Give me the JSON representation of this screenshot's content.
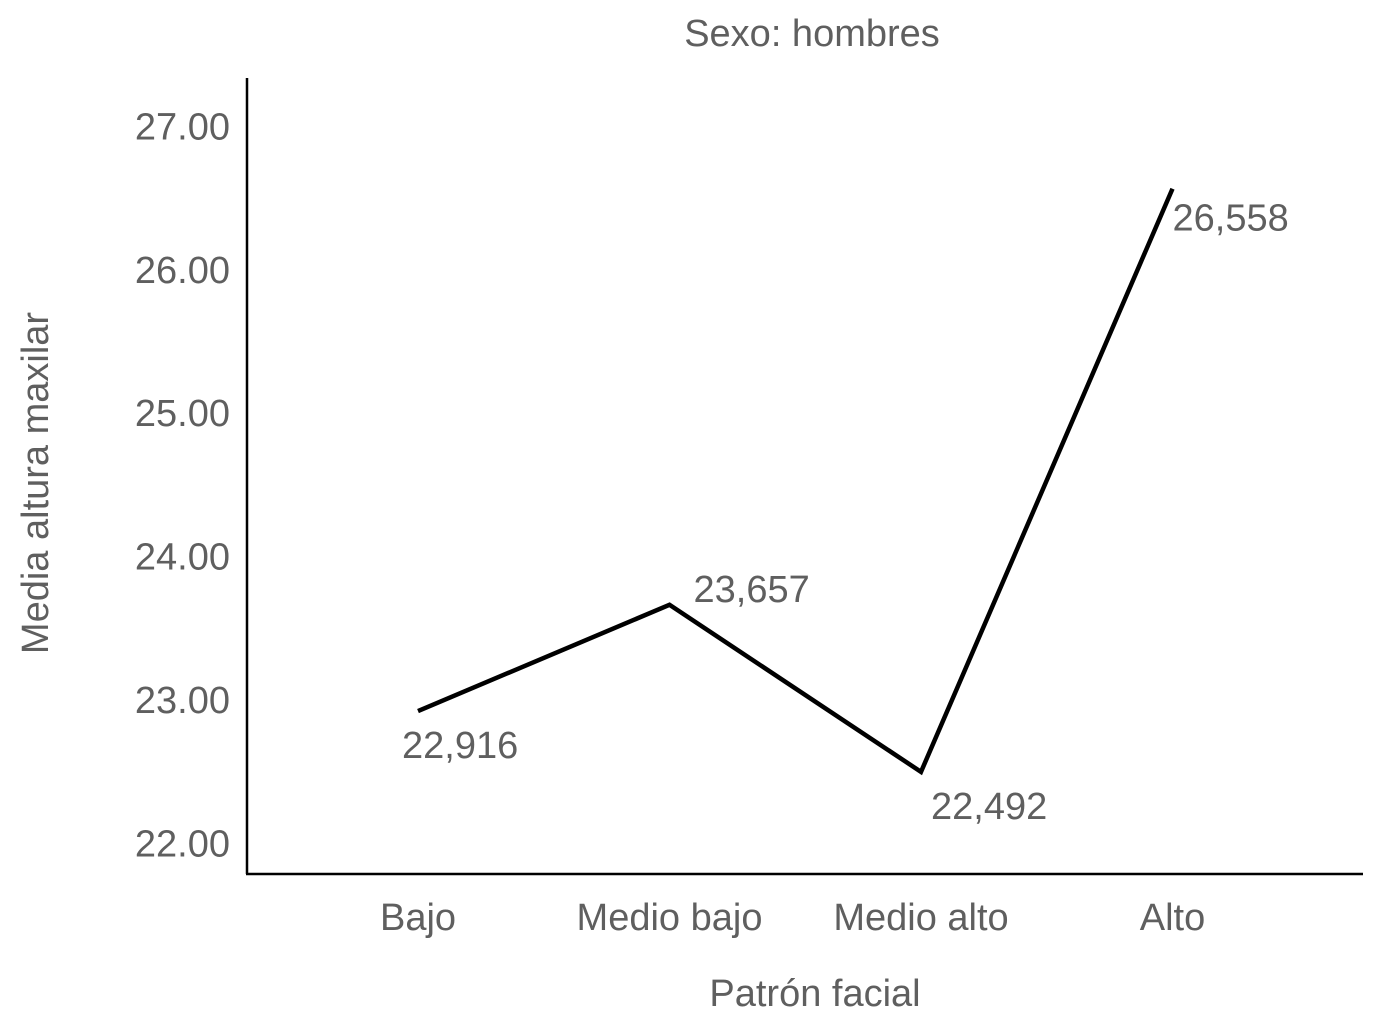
{
  "chart_data": {
    "type": "line",
    "title": "Sexo: hombres",
    "xlabel": "Patrón facial",
    "ylabel": "Media altura maxilar",
    "categories": [
      "Bajo",
      "Medio bajo",
      "Medio alto",
      "Alto"
    ],
    "values": [
      22.916,
      23.657,
      22.492,
      26.558
    ],
    "data_labels": [
      "22,916",
      "23,657",
      "22,492",
      "26,558"
    ],
    "y_ticks": [
      22,
      23,
      24,
      25,
      26,
      27
    ],
    "y_tick_labels": [
      "22.00",
      "23.00",
      "24.00",
      "25.00",
      "26.00",
      "27.00"
    ],
    "ylim": [
      21.78,
      27.33
    ],
    "grid": false,
    "legend": "none",
    "line_color": "#000000",
    "text_color": "#5f5f5f"
  }
}
